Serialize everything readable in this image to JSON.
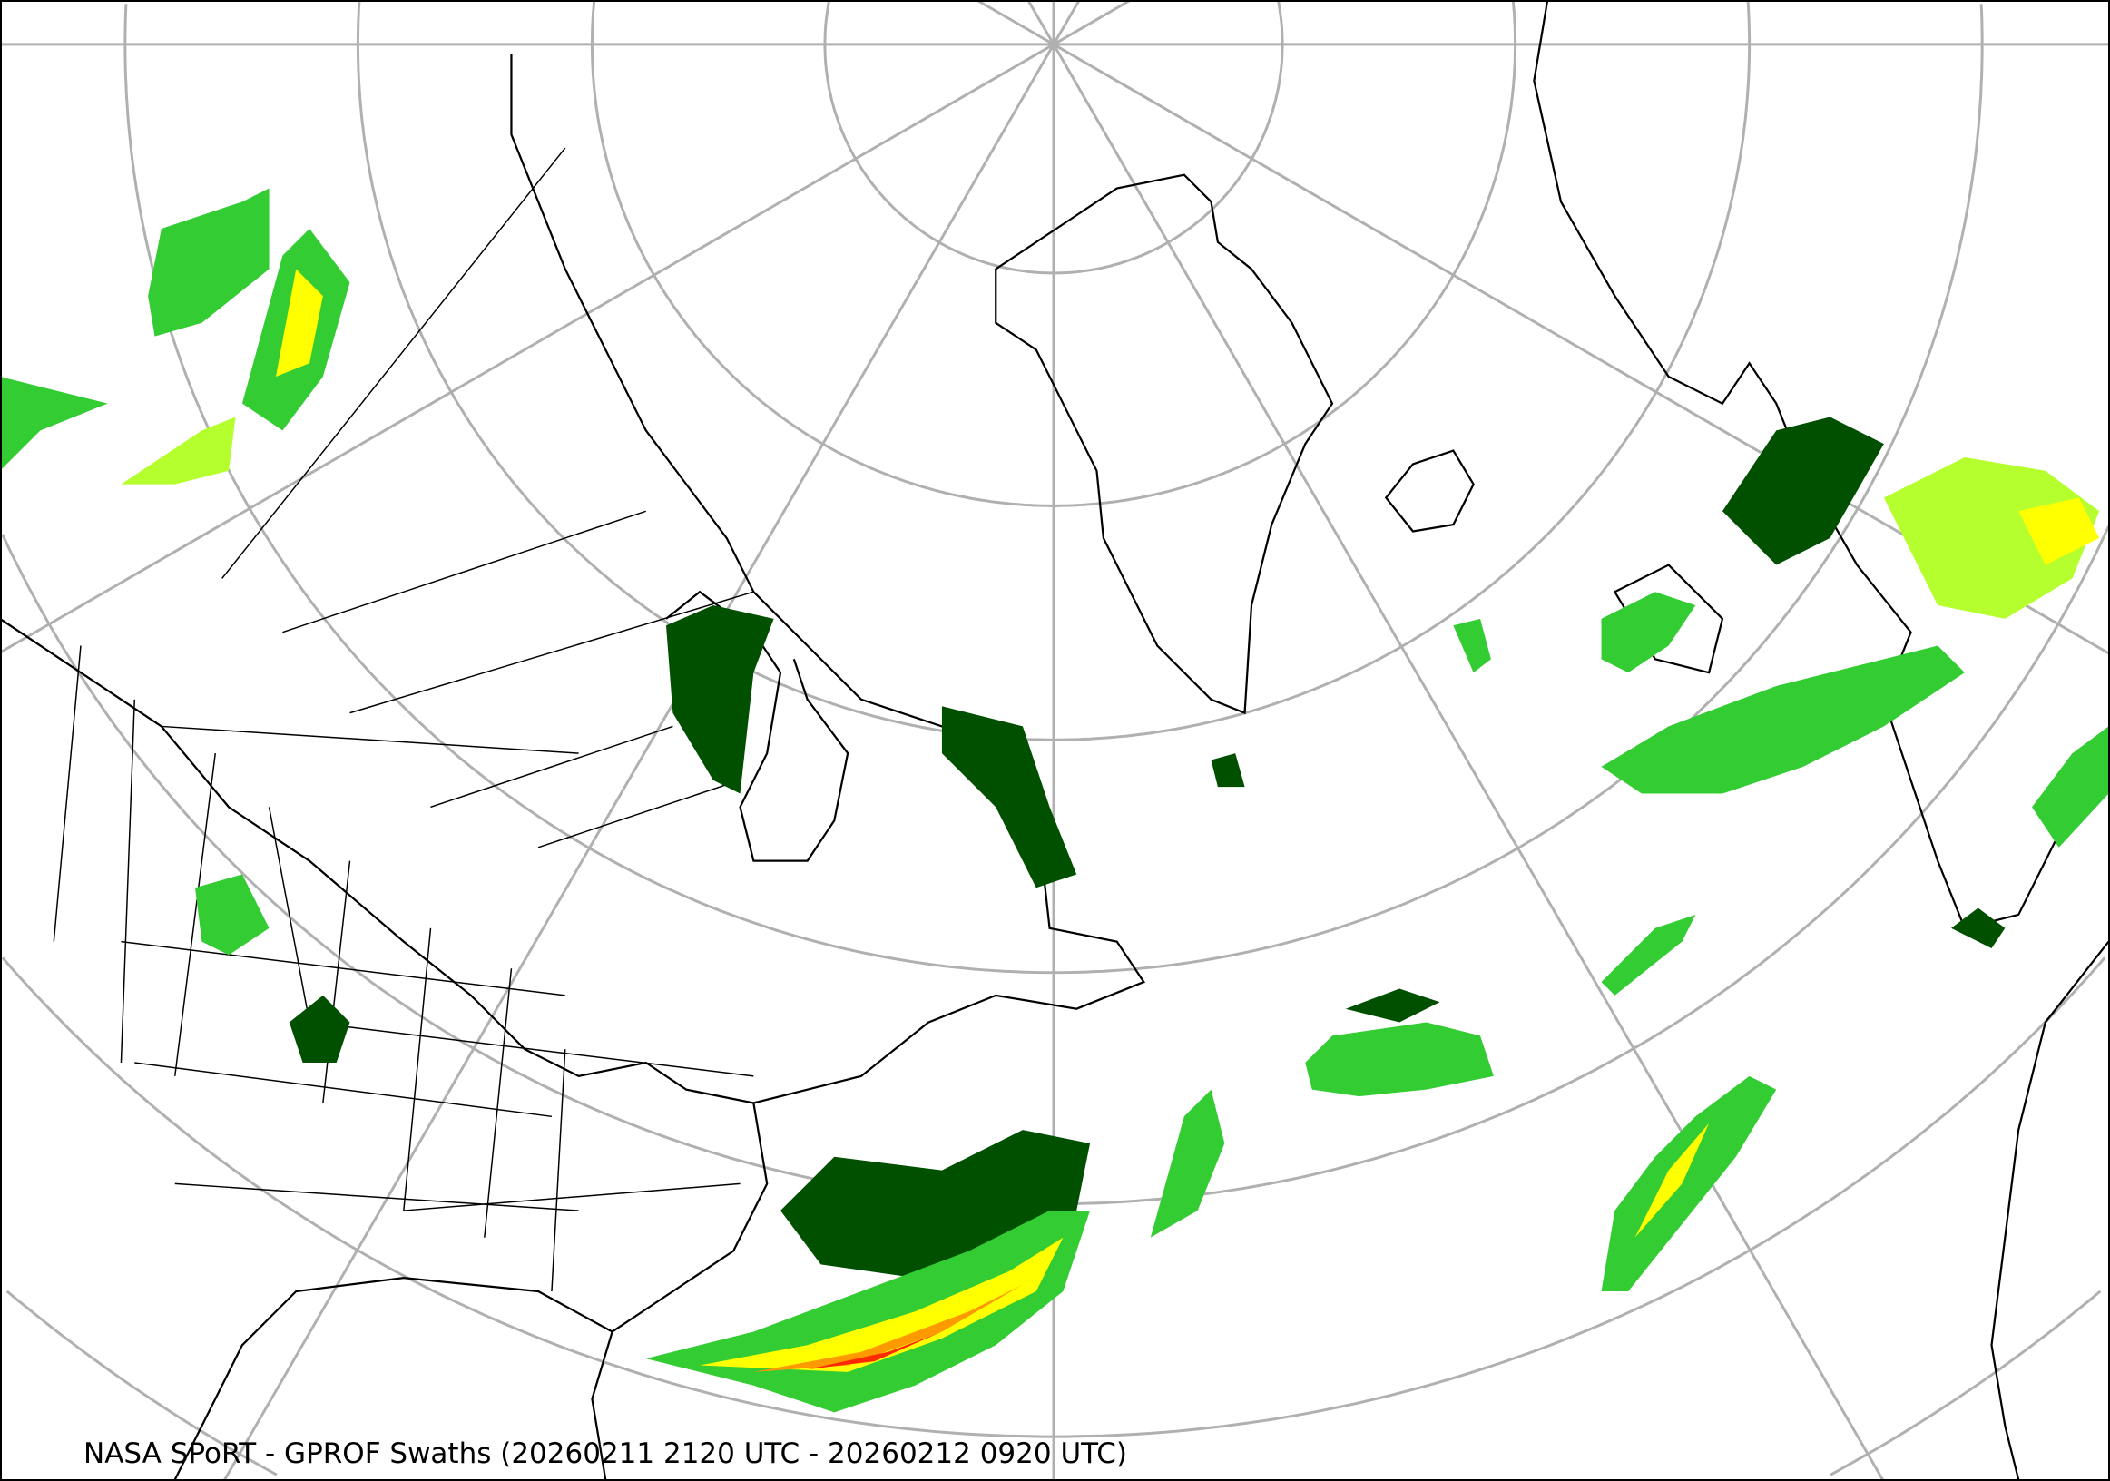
{
  "map": {
    "caption": "NASA SPoRT - GPROF Swaths (20260211 2120 UTC - 20260212 0920 UTC)",
    "projection": "north-polar-stereographic",
    "graticule_color": "#b0b0b0",
    "coastline_color": "#000000",
    "precip_colors": {
      "light": "#005000",
      "light_moderate": "#1a8a1a",
      "moderate": "#33cc33",
      "moderate_heavy": "#b5ff2e",
      "heavy": "#ffff00",
      "very_heavy": "#ff9900",
      "extreme": "#ff2a00"
    }
  }
}
